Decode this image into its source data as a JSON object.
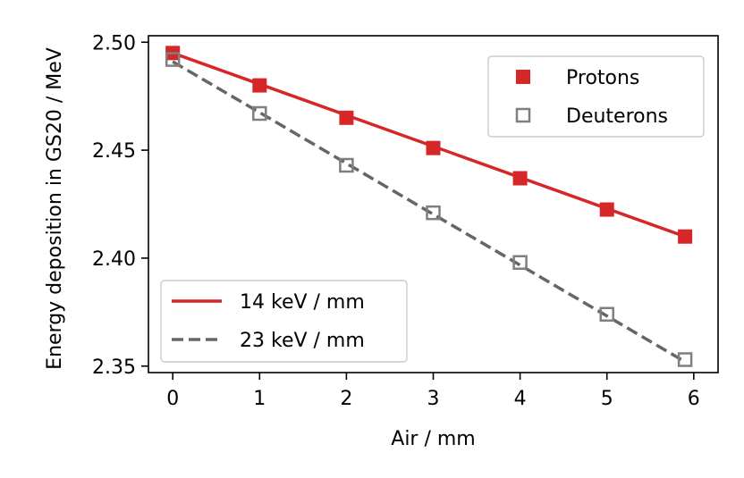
{
  "chart_data": {
    "type": "scatter",
    "xlabel": "Air / mm",
    "ylabel": "Energy deposition in GS20 / MeV",
    "xlim": [
      -0.28,
      6.28
    ],
    "ylim": [
      2.347,
      2.503
    ],
    "xticks": [
      0,
      1,
      2,
      3,
      4,
      5,
      6
    ],
    "xtick_labels": [
      "0",
      "1",
      "2",
      "3",
      "4",
      "5",
      "6"
    ],
    "yticks": [
      2.35,
      2.4,
      2.45,
      2.5
    ],
    "ytick_labels": [
      "2.35",
      "2.40",
      "2.45",
      "2.50"
    ],
    "grid": false,
    "series": [
      {
        "name": "Protons",
        "kind": "markers",
        "marker": "filled-square",
        "color": "#d62728",
        "x": [
          0,
          1,
          2,
          3,
          4,
          5,
          5.9
        ],
        "y": [
          2.495,
          2.48,
          2.465,
          2.451,
          2.437,
          2.4225,
          2.41
        ]
      },
      {
        "name": "Deuterons",
        "kind": "markers",
        "marker": "open-square",
        "color": "#7f7f7f",
        "x": [
          0,
          1,
          2,
          3,
          4,
          5,
          5.9
        ],
        "y": [
          2.492,
          2.467,
          2.443,
          2.421,
          2.398,
          2.374,
          2.353
        ]
      },
      {
        "name": "14 keV / mm",
        "kind": "line",
        "style": "solid",
        "color": "#d62728",
        "x": [
          0,
          5.9
        ],
        "y": [
          2.495,
          2.41
        ]
      },
      {
        "name": "23 keV / mm",
        "kind": "line",
        "style": "dashed",
        "color": "#666666",
        "x": [
          0,
          5.9
        ],
        "y": [
          2.491,
          2.352
        ]
      }
    ],
    "legends": [
      {
        "position": "top-right",
        "entries": [
          "Protons",
          "Deuterons"
        ]
      },
      {
        "position": "lower-left",
        "entries": [
          "14 keV / mm",
          "23 keV / mm"
        ]
      }
    ]
  }
}
